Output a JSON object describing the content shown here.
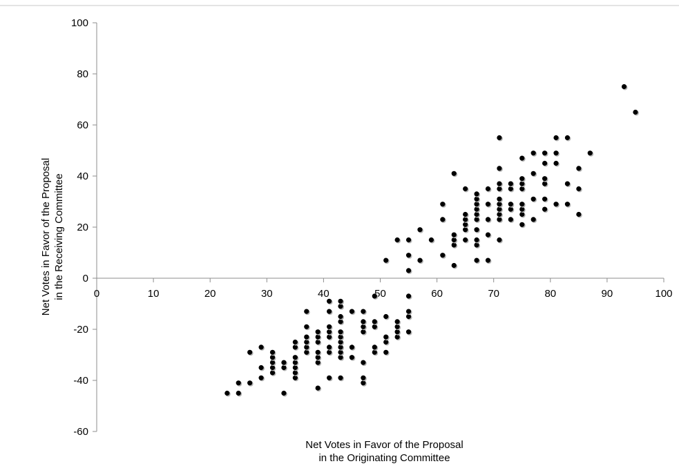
{
  "chart_data": {
    "type": "scatter",
    "title": "",
    "xlabel": [
      "Net Votes in Favor of the Proposal",
      "in the Originating Committee"
    ],
    "ylabel": [
      "Net Votes in Favor of the Proposal",
      "in the Receiving Committee"
    ],
    "xlim": [
      0,
      100
    ],
    "ylim": [
      -60,
      100
    ],
    "xticks": [
      0,
      10,
      20,
      30,
      40,
      50,
      60,
      70,
      80,
      90,
      100
    ],
    "yticks": [
      -60,
      -40,
      -20,
      0,
      20,
      40,
      60,
      80,
      100
    ],
    "xtick_labels": [
      "0",
      "10",
      "20",
      "30",
      "40",
      "50",
      "60",
      "70",
      "80",
      "90",
      "100"
    ],
    "ytick_labels": [
      "-60",
      "-40",
      "-20",
      "0",
      "20",
      "40",
      "60",
      "80",
      "100"
    ],
    "grid": false,
    "legend": "none",
    "marker_color": "#000000",
    "series": [
      {
        "points": [
          [
            23,
            -45
          ],
          [
            25,
            -45
          ],
          [
            25,
            -41
          ],
          [
            27,
            -41
          ],
          [
            27,
            -29
          ],
          [
            29,
            -39
          ],
          [
            29,
            -35
          ],
          [
            29,
            -27
          ],
          [
            31,
            -37
          ],
          [
            31,
            -35
          ],
          [
            31,
            -33
          ],
          [
            31,
            -31
          ],
          [
            31,
            -29
          ],
          [
            33,
            -45
          ],
          [
            33,
            -35
          ],
          [
            33,
            -33
          ],
          [
            35,
            -39
          ],
          [
            35,
            -37
          ],
          [
            35,
            -35
          ],
          [
            35,
            -33
          ],
          [
            35,
            -31
          ],
          [
            35,
            -27
          ],
          [
            35,
            -25
          ],
          [
            37,
            -29
          ],
          [
            37,
            -27
          ],
          [
            37,
            -25
          ],
          [
            37,
            -23
          ],
          [
            37,
            -19
          ],
          [
            37,
            -13
          ],
          [
            39,
            -43
          ],
          [
            39,
            -33
          ],
          [
            39,
            -31
          ],
          [
            39,
            -29
          ],
          [
            39,
            -25
          ],
          [
            39,
            -23
          ],
          [
            39,
            -21
          ],
          [
            41,
            -39
          ],
          [
            41,
            -29
          ],
          [
            41,
            -27
          ],
          [
            41,
            -23
          ],
          [
            41,
            -21
          ],
          [
            41,
            -19
          ],
          [
            41,
            -13
          ],
          [
            41,
            -9
          ],
          [
            43,
            -39
          ],
          [
            43,
            -31
          ],
          [
            43,
            -29
          ],
          [
            43,
            -27
          ],
          [
            43,
            -25
          ],
          [
            43,
            -23
          ],
          [
            43,
            -21
          ],
          [
            43,
            -17
          ],
          [
            43,
            -15
          ],
          [
            43,
            -11
          ],
          [
            43,
            -9
          ],
          [
            45,
            -31
          ],
          [
            45,
            -27
          ],
          [
            45,
            -13
          ],
          [
            47,
            -41
          ],
          [
            47,
            -39
          ],
          [
            47,
            -33
          ],
          [
            47,
            -21
          ],
          [
            47,
            -19
          ],
          [
            47,
            -17
          ],
          [
            47,
            -13
          ],
          [
            49,
            -29
          ],
          [
            49,
            -27
          ],
          [
            49,
            -19
          ],
          [
            49,
            -17
          ],
          [
            49,
            -7
          ],
          [
            51,
            -29
          ],
          [
            51,
            -25
          ],
          [
            51,
            -23
          ],
          [
            51,
            -15
          ],
          [
            51,
            7
          ],
          [
            53,
            -23
          ],
          [
            53,
            -21
          ],
          [
            53,
            -19
          ],
          [
            53,
            -17
          ],
          [
            53,
            15
          ],
          [
            55,
            -21
          ],
          [
            55,
            -15
          ],
          [
            55,
            -13
          ],
          [
            55,
            -7
          ],
          [
            55,
            3
          ],
          [
            55,
            9
          ],
          [
            55,
            15
          ],
          [
            57,
            7
          ],
          [
            57,
            19
          ],
          [
            59,
            15
          ],
          [
            61,
            9
          ],
          [
            61,
            23
          ],
          [
            61,
            29
          ],
          [
            63,
            5
          ],
          [
            63,
            13
          ],
          [
            63,
            15
          ],
          [
            63,
            17
          ],
          [
            63,
            41
          ],
          [
            65,
            15
          ],
          [
            65,
            19
          ],
          [
            65,
            21
          ],
          [
            65,
            23
          ],
          [
            65,
            25
          ],
          [
            65,
            35
          ],
          [
            67,
            7
          ],
          [
            67,
            13
          ],
          [
            67,
            15
          ],
          [
            67,
            19
          ],
          [
            67,
            23
          ],
          [
            67,
            25
          ],
          [
            67,
            27
          ],
          [
            67,
            29
          ],
          [
            67,
            31
          ],
          [
            67,
            33
          ],
          [
            69,
            7
          ],
          [
            69,
            17
          ],
          [
            69,
            23
          ],
          [
            69,
            29
          ],
          [
            69,
            35
          ],
          [
            71,
            15
          ],
          [
            71,
            23
          ],
          [
            71,
            25
          ],
          [
            71,
            27
          ],
          [
            71,
            29
          ],
          [
            71,
            31
          ],
          [
            71,
            35
          ],
          [
            71,
            37
          ],
          [
            71,
            43
          ],
          [
            71,
            55
          ],
          [
            73,
            23
          ],
          [
            73,
            27
          ],
          [
            73,
            29
          ],
          [
            73,
            35
          ],
          [
            73,
            37
          ],
          [
            75,
            21
          ],
          [
            75,
            25
          ],
          [
            75,
            27
          ],
          [
            75,
            29
          ],
          [
            75,
            35
          ],
          [
            75,
            37
          ],
          [
            75,
            39
          ],
          [
            75,
            47
          ],
          [
            77,
            23
          ],
          [
            77,
            31
          ],
          [
            77,
            41
          ],
          [
            77,
            49
          ],
          [
            79,
            27
          ],
          [
            79,
            31
          ],
          [
            79,
            37
          ],
          [
            79,
            39
          ],
          [
            79,
            45
          ],
          [
            79,
            49
          ],
          [
            81,
            29
          ],
          [
            81,
            45
          ],
          [
            81,
            49
          ],
          [
            81,
            55
          ],
          [
            83,
            29
          ],
          [
            83,
            37
          ],
          [
            83,
            55
          ],
          [
            85,
            25
          ],
          [
            85,
            35
          ],
          [
            85,
            43
          ],
          [
            87,
            49
          ],
          [
            93,
            75
          ],
          [
            95,
            65
          ]
        ]
      }
    ]
  }
}
